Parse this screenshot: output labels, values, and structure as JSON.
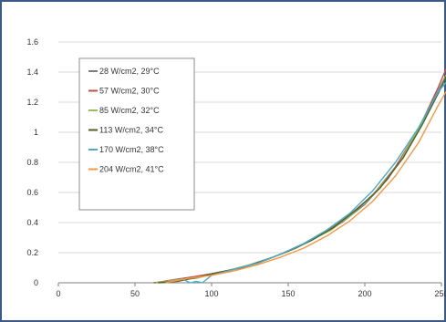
{
  "chart_data": {
    "type": "line",
    "title": "",
    "xlabel": "",
    "ylabel": "",
    "xlim": [
      0,
      250
    ],
    "ylim": [
      0,
      1.6
    ],
    "x_ticks": [
      0,
      50,
      100,
      150,
      200,
      250
    ],
    "y_ticks": [
      0,
      0.2,
      0.4,
      0.6,
      0.8,
      1,
      1.2,
      1.4,
      1.6
    ],
    "grid": "horizontal",
    "legend_position": "top-left",
    "series": [
      {
        "name": "28 W/cm2, 29°C",
        "color": "#7f7f7f",
        "x": [
          62,
          75,
          85,
          95,
          110,
          125,
          140,
          155,
          170,
          185,
          200,
          215,
          230,
          245,
          252
        ],
        "y": [
          0.0,
          0.01,
          0.03,
          0.05,
          0.08,
          0.12,
          0.17,
          0.23,
          0.31,
          0.4,
          0.52,
          0.69,
          0.92,
          1.22,
          1.36
        ]
      },
      {
        "name": "57 W/cm2, 30°C",
        "color": "#c0504d",
        "x": [
          63,
          75,
          88,
          100,
          115,
          130,
          145,
          160,
          175,
          190,
          205,
          220,
          235,
          248,
          253
        ],
        "y": [
          0.0,
          0.02,
          0.04,
          0.06,
          0.09,
          0.13,
          0.19,
          0.26,
          0.34,
          0.45,
          0.58,
          0.77,
          1.02,
          1.3,
          1.42
        ]
      },
      {
        "name": "85 W/cm2, 32°C",
        "color": "#9bbb59",
        "x": [
          64,
          78,
          90,
          102,
          118,
          132,
          148,
          162,
          178,
          192,
          207,
          222,
          236,
          249,
          253
        ],
        "y": [
          0.0,
          0.02,
          0.03,
          0.06,
          0.1,
          0.14,
          0.2,
          0.27,
          0.35,
          0.46,
          0.6,
          0.79,
          1.04,
          1.28,
          1.38
        ]
      },
      {
        "name": "113 W/cm2, 34°C",
        "color": "#4f6228",
        "x": [
          65,
          78,
          92,
          105,
          120,
          135,
          150,
          165,
          180,
          195,
          210,
          225,
          238,
          250,
          253
        ],
        "y": [
          0.0,
          0.01,
          0.04,
          0.07,
          0.1,
          0.15,
          0.21,
          0.28,
          0.37,
          0.49,
          0.63,
          0.83,
          1.06,
          1.3,
          1.37
        ]
      },
      {
        "name": "170 W/cm2, 38°C",
        "color": "#4bacc6",
        "x": [
          80,
          86,
          90,
          94,
          100,
          115,
          130,
          145,
          160,
          175,
          190,
          205,
          220,
          235,
          248,
          253
        ],
        "y": [
          0.03,
          0.0,
          0.01,
          0.0,
          0.05,
          0.09,
          0.13,
          0.19,
          0.26,
          0.35,
          0.46,
          0.61,
          0.8,
          1.03,
          1.27,
          1.33
        ]
      },
      {
        "name": "204 W/cm2, 41°C",
        "color": "#f79646",
        "x": [
          70,
          85,
          100,
          115,
          130,
          145,
          160,
          175,
          190,
          205,
          220,
          235,
          248,
          253
        ],
        "y": [
          0.0,
          0.03,
          0.05,
          0.08,
          0.12,
          0.17,
          0.23,
          0.31,
          0.41,
          0.54,
          0.71,
          0.93,
          1.18,
          1.27
        ]
      }
    ]
  },
  "colors": {
    "frame_border": "#3a5a8a",
    "gridline": "#d9d9d9",
    "axis": "#7f7f7f"
  }
}
